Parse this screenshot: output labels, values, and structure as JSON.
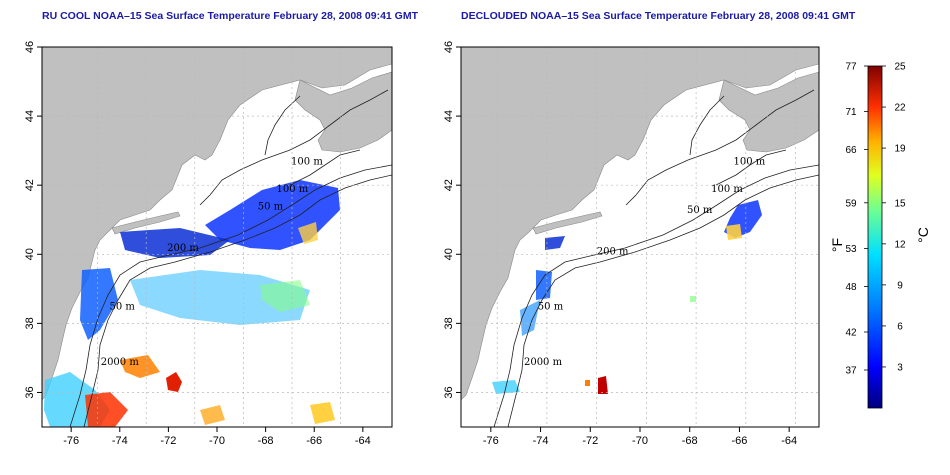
{
  "panels": [
    {
      "id": "raw",
      "title": "RU COOL NOAA–15 Sea Surface Temperature February 28, 2008 09:41 GMT",
      "contour_labels": [
        {
          "text": "100 m",
          "lon": -66.3,
          "lat": 42.6
        },
        {
          "text": "100 m",
          "lon": -66.9,
          "lat": 41.8
        },
        {
          "text": "50 m",
          "lon": -67.8,
          "lat": 41.3
        },
        {
          "text": "200 m",
          "lon": -71.4,
          "lat": 40.1
        },
        {
          "text": "50 m",
          "lon": -73.9,
          "lat": 38.4
        },
        {
          "text": "2000 m",
          "lon": -74.0,
          "lat": 36.8
        }
      ]
    },
    {
      "id": "declouded",
      "title": "DECLOUDED NOAA–15 Sea Surface Temperature February 28, 2008 09:41 GMT",
      "contour_labels": [
        {
          "text": "100 m",
          "lon": -65.6,
          "lat": 42.6
        },
        {
          "text": "100 m",
          "lon": -66.5,
          "lat": 41.8
        },
        {
          "text": "50 m",
          "lon": -67.6,
          "lat": 41.2
        },
        {
          "text": "200 m",
          "lon": -71.1,
          "lat": 40.0
        },
        {
          "text": "50 m",
          "lon": -73.6,
          "lat": 38.4
        },
        {
          "text": "2000 m",
          "lon": -73.9,
          "lat": 36.8
        }
      ]
    }
  ],
  "axes": {
    "lon_ticks": [
      "-76",
      "-74",
      "-72",
      "-70",
      "-68",
      "-66",
      "-64"
    ],
    "lat_ticks": [
      "36",
      "38",
      "40",
      "42",
      "44",
      "46"
    ],
    "lon_range": [
      -77.2,
      -62.8
    ],
    "lat_range": [
      35.0,
      46.0
    ]
  },
  "colorbar": {
    "fahrenheit_ticks": [
      "77",
      "71",
      "66",
      "59",
      "53",
      "48",
      "42",
      "37"
    ],
    "celsius_ticks": [
      "25",
      "22",
      "19",
      "15",
      "12",
      "9",
      "6",
      "3"
    ],
    "fahrenheit_values": [
      77,
      71,
      66,
      59,
      53,
      48,
      42,
      37
    ],
    "celsius_values": [
      25,
      22,
      19,
      15,
      12,
      9,
      6,
      3
    ],
    "range_c": [
      0,
      25
    ],
    "unit_f": "°F",
    "unit_c": "°C"
  },
  "colors": {
    "land": "#c0c0c0",
    "ocean": "#ffffff",
    "title": "#1a1aa6",
    "contour": "#222222",
    "grid": "#b8b8b8"
  }
}
